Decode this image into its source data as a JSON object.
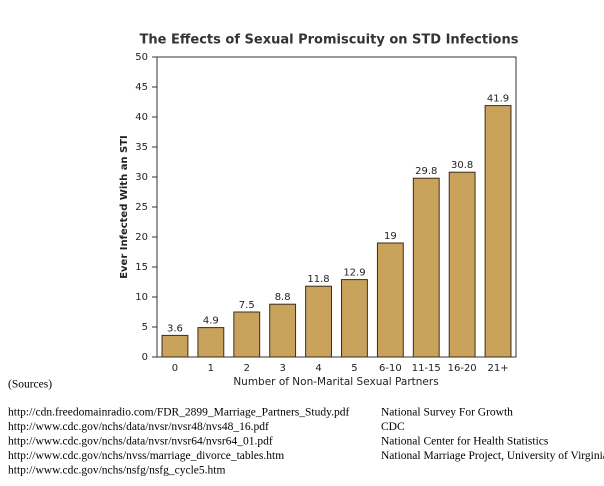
{
  "chart_data": {
    "type": "bar",
    "title": "The Effects of Sexual Promiscuity on STD Infections",
    "x_label": "Number of Non-Marital Sexual Partners",
    "y_label": "Ever Infected With an STI",
    "categories": [
      "0",
      "1",
      "2",
      "3",
      "4",
      "5",
      "6-10",
      "11-15",
      "16-20",
      "21+"
    ],
    "values": [
      3.6,
      4.9,
      7.5,
      8.8,
      11.8,
      12.9,
      19,
      29.8,
      30.8,
      41.9
    ],
    "color": "#c9a25c",
    "ylim": [
      0,
      50
    ],
    "yticks": [
      0,
      5,
      10,
      15,
      20,
      25,
      30,
      35,
      40,
      45,
      50
    ],
    "grid": false
  },
  "sources": {
    "heading": "(Sources)",
    "urls": [
      "http://cdn.freedomainradio.com/FDR_2899_Marriage_Partners_Study.pdf",
      "http://www.cdc.gov/nchs/data/nvsr/nvsr48/nvs48_16.pdf",
      "http://www.cdc.gov/nchs/data/nvsr/nvsr64/nvsr64_01.pdf",
      "http://www.cdc.gov/nchs/nvss/marriage_divorce_tables.htm",
      "http://www.cdc.gov/nchs/nsfg/nsfg_cycle5.htm"
    ],
    "organizations": [
      "National Survey For Growth",
      "CDC",
      "National Center for Health Statistics",
      "National Marriage Project, University of Virginia"
    ]
  }
}
